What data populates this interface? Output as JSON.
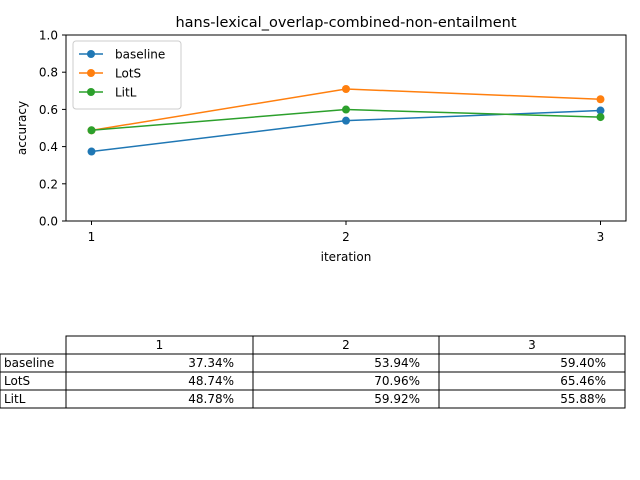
{
  "chart_data": {
    "type": "line",
    "title": "hans-lexical_overlap-combined-non-entailment",
    "xlabel": "iteration",
    "ylabel": "accuracy",
    "x": [
      1,
      2,
      3
    ],
    "xticks": [
      "1",
      "2",
      "3"
    ],
    "ylim": [
      0.0,
      1.0
    ],
    "yticks": [
      "0.0",
      "0.2",
      "0.4",
      "0.6",
      "0.8",
      "1.0"
    ],
    "grid": false,
    "legend_position": "top-left",
    "series": [
      {
        "name": "baseline",
        "color": "#1f77b4",
        "values": [
          0.3734,
          0.5394,
          0.594
        ]
      },
      {
        "name": "LotS",
        "color": "#ff7f0e",
        "values": [
          0.4874,
          0.7096,
          0.6546
        ]
      },
      {
        "name": "LitL",
        "color": "#2ca02c",
        "values": [
          0.4878,
          0.5992,
          0.5588
        ]
      }
    ]
  },
  "table": {
    "columns": [
      "1",
      "2",
      "3"
    ],
    "rows": [
      {
        "label": "baseline",
        "cells": [
          "37.34%",
          "53.94%",
          "59.40%"
        ]
      },
      {
        "label": "LotS",
        "cells": [
          "48.74%",
          "70.96%",
          "65.46%"
        ]
      },
      {
        "label": "LitL",
        "cells": [
          "48.78%",
          "59.92%",
          "55.88%"
        ]
      }
    ]
  }
}
